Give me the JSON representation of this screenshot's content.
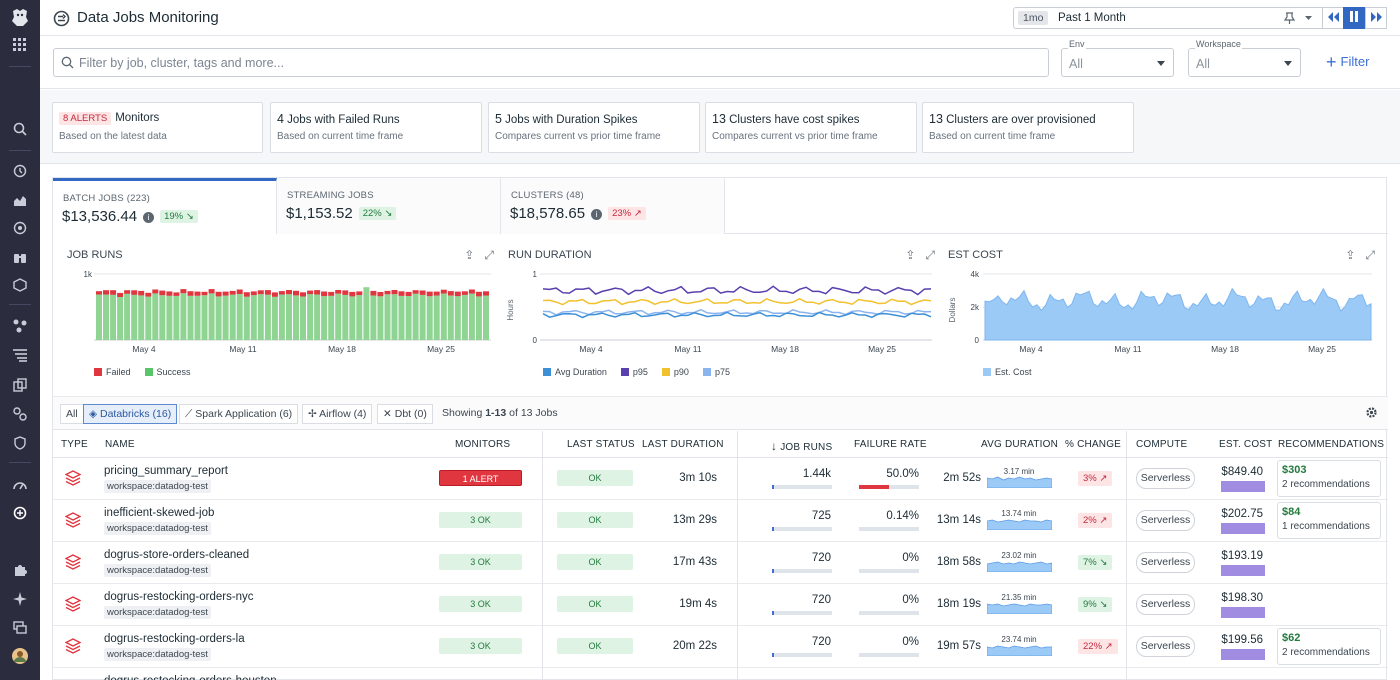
{
  "app": {
    "title": "Data Jobs Monitoring"
  },
  "time": {
    "badge": "1mo",
    "label": "Past 1 Month"
  },
  "search": {
    "placeholder": "Filter by job, cluster, tags and more..."
  },
  "filters": {
    "env": {
      "caption": "Env",
      "value": "All"
    },
    "workspace": {
      "caption": "Workspace",
      "value": "All"
    },
    "filter_button": "Filter"
  },
  "summary_cards": [
    {
      "badge": "8 ALERTS",
      "title": "Monitors",
      "subtitle": "Based on the latest data"
    },
    {
      "count": "4",
      "title": "Jobs with Failed Runs",
      "subtitle": "Based on current time frame"
    },
    {
      "count": "5",
      "title": "Jobs with Duration Spikes",
      "subtitle": "Compares current vs prior time frame"
    },
    {
      "count": "13",
      "title": "Clusters have cost spikes",
      "subtitle": "Compares current vs prior time frame"
    },
    {
      "count": "13",
      "title": "Clusters are over provisioned",
      "subtitle": "Based on current time frame"
    }
  ],
  "tabs": [
    {
      "label": "BATCH JOBS (223)",
      "value": "$13,536.44",
      "change": "19%",
      "status": "good"
    },
    {
      "label": "STREAMING JOBS",
      "value": "$1,153.52",
      "change": "22%",
      "status": "good"
    },
    {
      "label": "CLUSTERS (48)",
      "value": "$18,578.65",
      "change": "23%",
      "status": "bad"
    }
  ],
  "charts": {
    "job_runs": {
      "title": "JOB RUNS",
      "ytick": "1k",
      "xticks": [
        "May 4",
        "May 11",
        "May 18",
        "May 25"
      ],
      "legend": [
        "Failed",
        "Success"
      ]
    },
    "run_duration": {
      "title": "RUN DURATION",
      "ylabel": "Hours",
      "ytick": "1",
      "ytick0": "0",
      "xticks": [
        "May 4",
        "May 11",
        "May 18",
        "May 25"
      ],
      "legend": [
        "Avg Duration",
        "p95",
        "p90",
        "p75"
      ]
    },
    "est_cost": {
      "title": "EST COST",
      "ylabel": "Dollars",
      "yticks": [
        "4k",
        "2k",
        "0"
      ],
      "xticks": [
        "May 4",
        "May 11",
        "May 18",
        "May 25"
      ],
      "legend": [
        "Est. Cost"
      ]
    }
  },
  "colors": {
    "failed": "#e0363f",
    "success": "#8fd492",
    "avg": "#3d8fd6",
    "p95": "#5a3fae",
    "p90": "#f2c12e",
    "p75": "#8ab4f0",
    "cost": "#9ccaf6",
    "accent": "#3268c1"
  },
  "sources": {
    "all": "All",
    "databricks": "Databricks (16)",
    "spark": "Spark Application (6)",
    "airflow": "Airflow (4)",
    "dbt": "Dbt (0)",
    "showing_prefix": "Showing",
    "showing_range": "1-13",
    "showing_suffix": "of 13 Jobs"
  },
  "columns": {
    "type": "TYPE",
    "name": "NAME",
    "monitors": "MONITORS",
    "last_status": "LAST STATUS",
    "last_duration": "LAST DURATION",
    "job_runs": "JOB RUNS",
    "failure_rate": "FAILURE RATE",
    "avg_duration": "AVG DURATION",
    "pct_change": "% CHANGE",
    "compute": "COMPUTE",
    "est_cost": "EST. COST",
    "recommendations": "RECOMMENDATIONS"
  },
  "rows": [
    {
      "name": "pricing_summary_report",
      "workspace": "workspace:datadog-test",
      "monitors": "1 ALERT",
      "monitor_status": "alert",
      "last_status": "OK",
      "last_duration": "3m 10s",
      "job_runs": "1.44k",
      "runs_fraction": 0.02,
      "failure_rate": "50.0%",
      "failure_fraction": 0.5,
      "avg_duration": "2m 52s",
      "spark_label": "3.17 min",
      "pct_change": "3%",
      "pct_status": "bad",
      "compute": "Serverless",
      "est_cost": "$849.40",
      "rec_amount": "$303",
      "rec_text": "2 recommendations"
    },
    {
      "name": "inefficient-skewed-job",
      "workspace": "workspace:datadog-test",
      "monitors": "3 OK",
      "monitor_status": "ok",
      "last_status": "OK",
      "last_duration": "13m 29s",
      "job_runs": "725",
      "runs_fraction": 0.02,
      "failure_rate": "0.14%",
      "failure_fraction": 0.0,
      "avg_duration": "13m 14s",
      "spark_label": "13.74 min",
      "pct_change": "2%",
      "pct_status": "bad",
      "compute": "Serverless",
      "est_cost": "$202.75",
      "rec_amount": "$84",
      "rec_text": "1 recommendations"
    },
    {
      "name": "dogrus-store-orders-cleaned",
      "workspace": "workspace:datadog-test",
      "monitors": "3 OK",
      "monitor_status": "ok",
      "last_status": "OK",
      "last_duration": "17m 43s",
      "job_runs": "720",
      "runs_fraction": 0.02,
      "failure_rate": "0%",
      "failure_fraction": 0.0,
      "avg_duration": "18m 58s",
      "spark_label": "23.02 min",
      "pct_change": "7%",
      "pct_status": "good",
      "compute": "Serverless",
      "est_cost": "$193.19",
      "rec_amount": "",
      "rec_text": ""
    },
    {
      "name": "dogrus-restocking-orders-nyc",
      "workspace": "workspace:datadog-test",
      "monitors": "3 OK",
      "monitor_status": "ok",
      "last_status": "OK",
      "last_duration": "19m 4s",
      "job_runs": "720",
      "runs_fraction": 0.02,
      "failure_rate": "0%",
      "failure_fraction": 0.0,
      "avg_duration": "18m 19s",
      "spark_label": "21.35 min",
      "pct_change": "9%",
      "pct_status": "good",
      "compute": "Serverless",
      "est_cost": "$198.30",
      "rec_amount": "",
      "rec_text": ""
    },
    {
      "name": "dogrus-restocking-orders-la",
      "workspace": "workspace:datadog-test",
      "monitors": "3 OK",
      "monitor_status": "ok",
      "last_status": "OK",
      "last_duration": "20m 22s",
      "job_runs": "720",
      "runs_fraction": 0.02,
      "failure_rate": "0%",
      "failure_fraction": 0.0,
      "avg_duration": "19m 57s",
      "spark_label": "23.74 min",
      "pct_change": "22%",
      "pct_status": "bad",
      "compute": "Serverless",
      "est_cost": "$199.56",
      "rec_amount": "$62",
      "rec_text": "2 recommendations"
    },
    {
      "name": "dogrus-restocking-orders-houston",
      "workspace": "",
      "monitors": "",
      "monitor_status": "",
      "last_status": "",
      "last_duration": "",
      "job_runs": "",
      "runs_fraction": 0,
      "failure_rate": "",
      "failure_fraction": 0,
      "avg_duration": "",
      "spark_label": "",
      "pct_change": "",
      "pct_status": "",
      "compute": "",
      "est_cost": "",
      "rec_amount": "",
      "rec_text": ""
    }
  ]
}
